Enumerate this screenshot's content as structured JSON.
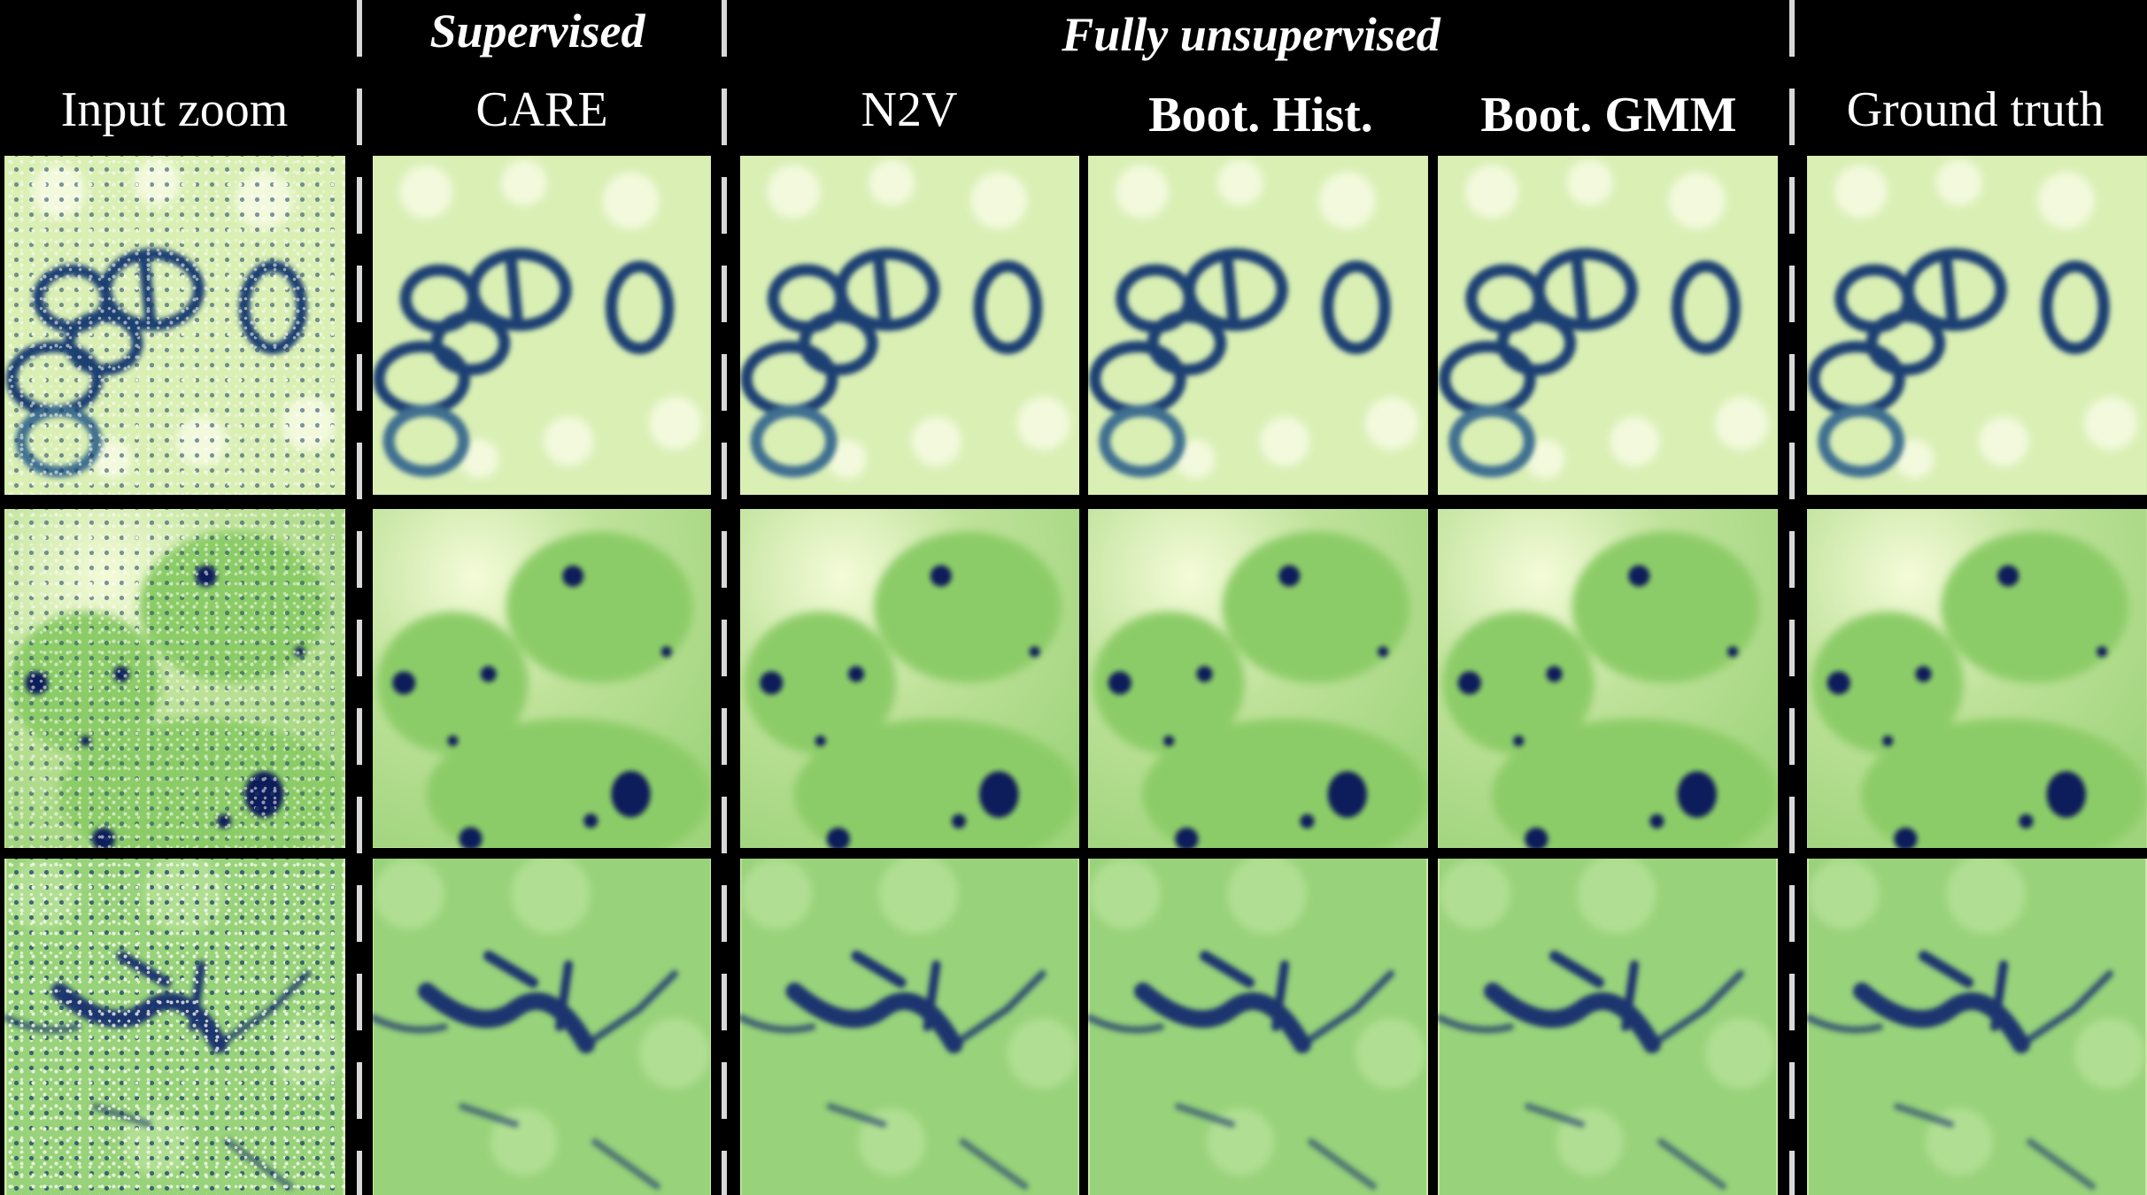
{
  "header": {
    "groups": {
      "supervised": "Supervised",
      "unsupervised": "Fully unsupervised"
    },
    "columns": [
      {
        "label": "Input zoom"
      },
      {
        "label": "CARE"
      },
      {
        "label": "N2V"
      },
      {
        "label": "Boot. Hist."
      },
      {
        "label": "Boot. GMM"
      },
      {
        "label": "Ground truth"
      }
    ]
  },
  "colors": {
    "background": "#000000",
    "colormap_light": "#f7fbe0",
    "colormap_mid": "#8fcf6a",
    "colormap_dark": "#0f1f5a",
    "divider": "#d8d8d8"
  },
  "rows": [
    {
      "content": "ring-shaped structures"
    },
    {
      "content": "nuclei with dark spots"
    },
    {
      "content": "dark filament network"
    }
  ]
}
